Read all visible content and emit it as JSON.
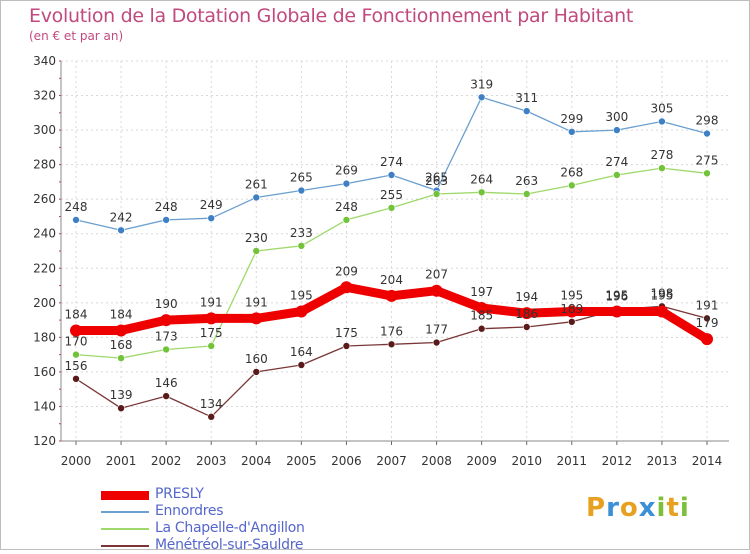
{
  "header": {
    "title": "Evolution de la Dotation Globale de Fonctionnement par Habitant",
    "subtitle": "(en € et par an)"
  },
  "logo": {
    "text": "Proxiti",
    "letters": [
      {
        "ch": "P",
        "color": "#e8a020"
      },
      {
        "ch": "r",
        "color": "#3a8fd6"
      },
      {
        "ch": "o",
        "color": "#e8a020"
      },
      {
        "ch": "x",
        "color": "#3a8fd6"
      },
      {
        "ch": "i",
        "color": "#7cc03a"
      },
      {
        "ch": "t",
        "color": "#e8a020"
      },
      {
        "ch": "i",
        "color": "#7cc03a"
      }
    ]
  },
  "chart_data": {
    "type": "line",
    "title": "Evolution de la Dotation Globale de Fonctionnement par Habitant",
    "subtitle": "(en € et par an)",
    "x": [
      2000,
      2001,
      2002,
      2003,
      2004,
      2005,
      2006,
      2007,
      2008,
      2009,
      2010,
      2011,
      2012,
      2013,
      2014
    ],
    "ylim": [
      120,
      340
    ],
    "yticks": [
      120,
      140,
      160,
      180,
      200,
      220,
      240,
      260,
      280,
      300,
      320,
      340
    ],
    "grid": true,
    "legend_position": "bottom-left",
    "series": [
      {
        "name": "Ennordres",
        "color": "#6a9fd0",
        "marker": "#3f7fc4",
        "width": 1.3,
        "label_dy": -9,
        "values": [
          248,
          242,
          248,
          249,
          261,
          265,
          269,
          274,
          265,
          319,
          311,
          299,
          300,
          305,
          298
        ]
      },
      {
        "name": "La Chapelle-d'Angillon",
        "color": "#9ed86a",
        "marker": "#72c23a",
        "width": 1.3,
        "label_dy": -9,
        "values": [
          170,
          168,
          173,
          175,
          230,
          233,
          248,
          255,
          263,
          264,
          263,
          268,
          274,
          278,
          275
        ]
      },
      {
        "name": "Ménétréol-sur-Sauldre",
        "color": "#7a3636",
        "marker": "#5a1a1a",
        "width": 1.3,
        "label_dy": -9,
        "values": [
          156,
          139,
          146,
          134,
          160,
          164,
          175,
          176,
          177,
          185,
          186,
          189,
          196,
          198,
          191
        ]
      },
      {
        "name": "PRESLY",
        "color": "#ee0000",
        "marker": "#ee0000",
        "width": 9,
        "label_dy": -12,
        "values": [
          184,
          184,
          190,
          191,
          191,
          195,
          209,
          204,
          207,
          197,
          194,
          195,
          195,
          195,
          179
        ]
      }
    ],
    "legend_order": [
      "PRESLY",
      "Ennordres",
      "La Chapelle-d'Angillon",
      "Ménétréol-sur-Sauldre"
    ]
  }
}
